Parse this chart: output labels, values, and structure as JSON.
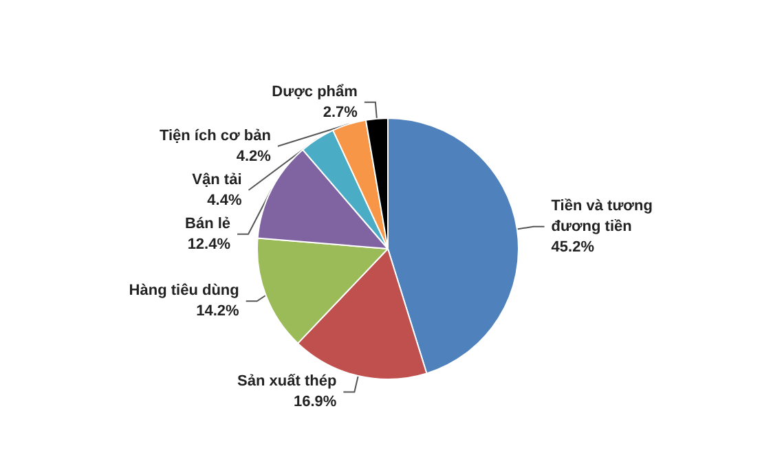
{
  "chart_data": {
    "type": "pie",
    "categories": [
      "Tiền và tương đương tiền",
      "Sản xuất thép",
      "Hàng tiêu dùng",
      "Bán lẻ",
      "Vận tải",
      "Tiện ích cơ bản",
      "Dược phẩm"
    ],
    "values": [
      45.2,
      16.9,
      14.2,
      12.4,
      4.4,
      4.2,
      2.7
    ],
    "colors": [
      "#4f81bd",
      "#c0504d",
      "#9bbb59",
      "#8064a2",
      "#4bacc6",
      "#f79646",
      "#000000"
    ],
    "value_labels": [
      "45.2%",
      "16.9%",
      "14.2%",
      "12.4%",
      "4.4%",
      "4.2%",
      "2.7%"
    ],
    "legend": false
  }
}
